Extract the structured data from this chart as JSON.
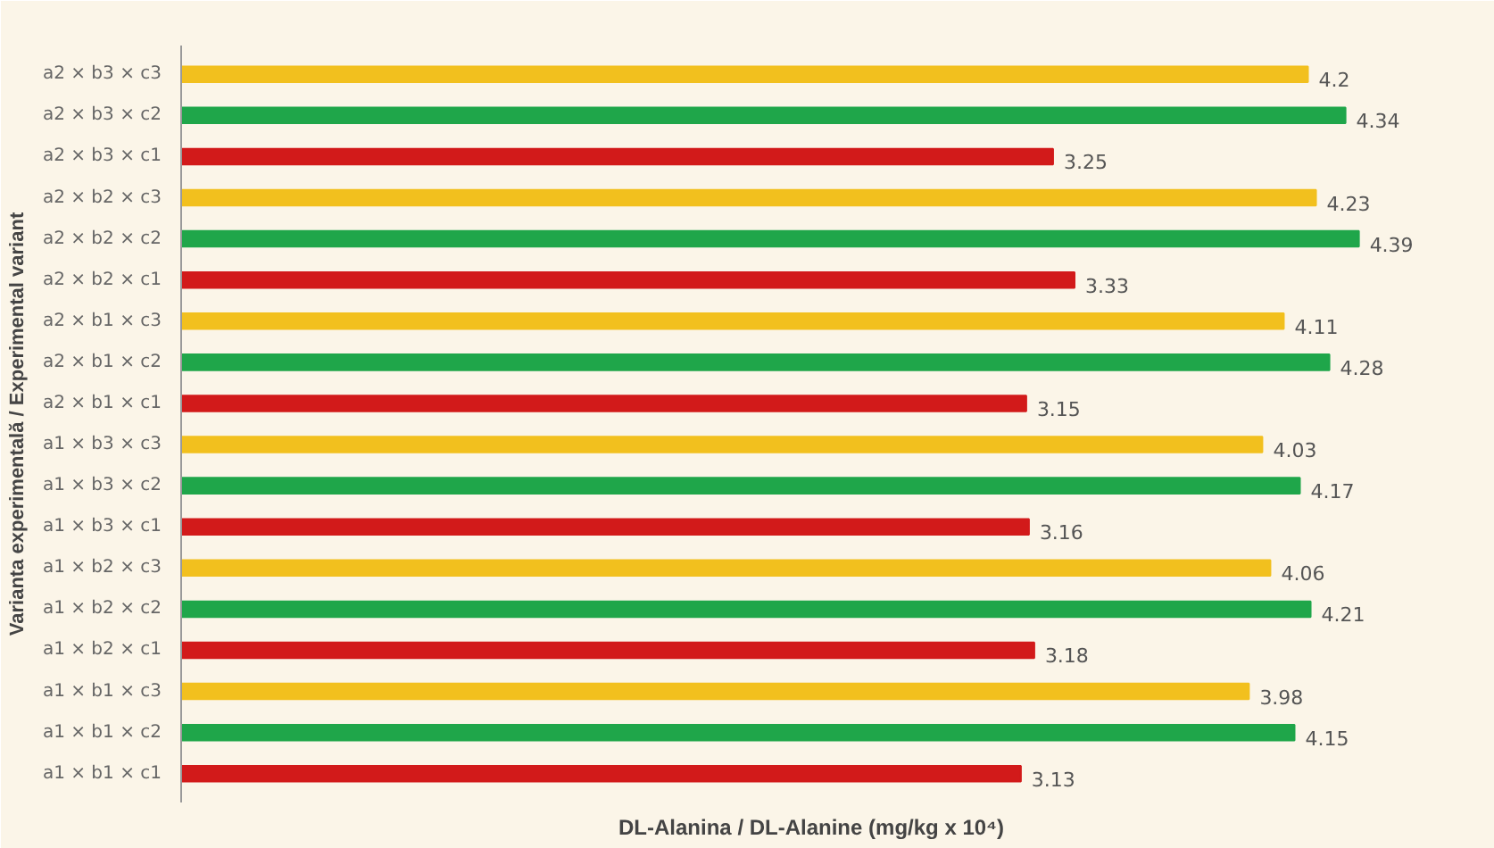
{
  "chart_data": {
    "type": "bar",
    "orientation": "horizontal",
    "data_labels": true,
    "grid": false,
    "xlabel": "DL-Alanina / DL-Alanine (mg/kg x 10⁴)",
    "ylabel": "Varianta experimentală / Experimental variant",
    "categories": [
      "a2 × b3 × c3",
      "a2 × b3 × c2",
      "a2 × b3 × c1",
      "a2 × b2 × c3",
      "a2 × b2 × c2",
      "a2 × b2 × c1",
      "a2 × b1 × c3",
      "a2 × b1 × c2",
      "a2 × b1 × c1",
      "a1 × b3 × c3",
      "a1 × b3 × c2",
      "a1 × b3 × c1",
      "a1 × b2 × c3",
      "a1 × b2 × c2",
      "a1 × b2 × c1",
      "a1 × b1 × c3",
      "a1 × b1 × c2",
      "a1 × b1 × c1"
    ],
    "values": [
      4.2,
      4.34,
      3.25,
      4.23,
      4.39,
      3.33,
      4.11,
      4.28,
      3.15,
      4.03,
      4.17,
      3.16,
      4.06,
      4.21,
      3.18,
      3.98,
      4.15,
      3.13
    ],
    "colors": [
      "#f2c01e",
      "#1fa64a",
      "#d21a1a",
      "#f2c01e",
      "#1fa64a",
      "#d21a1a",
      "#f2c01e",
      "#1fa64a",
      "#d21a1a",
      "#f2c01e",
      "#1fa64a",
      "#d21a1a",
      "#f2c01e",
      "#1fa64a",
      "#d21a1a",
      "#f2c01e",
      "#1fa64a",
      "#d21a1a"
    ]
  }
}
